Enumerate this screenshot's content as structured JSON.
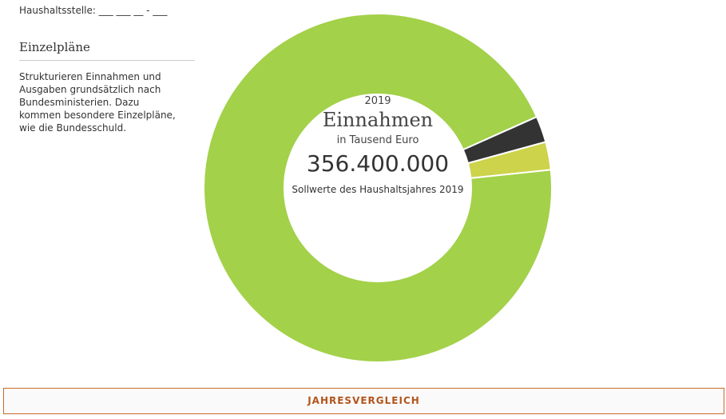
{
  "header": {
    "label": "Haushaltsstelle: ___ ___ __ - ___"
  },
  "sidebar": {
    "title": "Einzelpläne",
    "text": "Strukturieren Einnahmen und Ausgaben grundsätzlich nach Bundesministerien. Dazu kommen besondere Einzelpläne, wie die Bundesschuld."
  },
  "chart_data": {
    "type": "donut",
    "year": "2019",
    "title": "Einnahmen",
    "subtitle": "in Tausend Euro",
    "total": "356.400.000",
    "note": "Sollwerte des Haushaltsjahres 2019",
    "values": [
      338500000,
      8700000,
      9200000
    ],
    "colors": [
      "#a3d14a",
      "#333333",
      "#cdd34a"
    ]
  },
  "button": {
    "label": "JAHRESVERGLEICH"
  }
}
